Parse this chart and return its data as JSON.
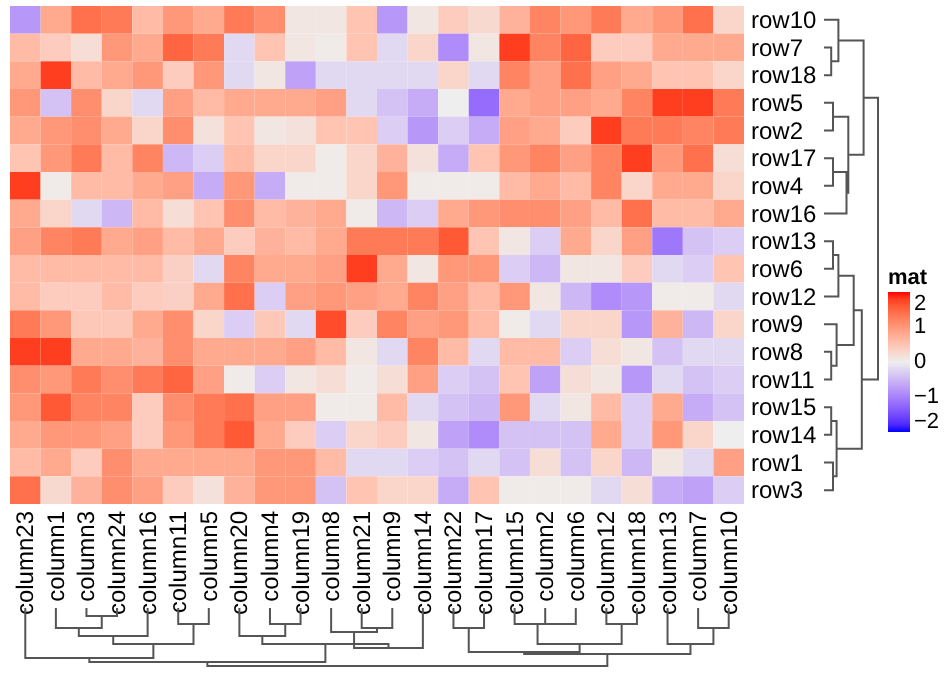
{
  "chart_data": {
    "type": "heatmap",
    "categories": [
      "column23",
      "column1",
      "column3",
      "column24",
      "column16",
      "column11",
      "column5",
      "column20",
      "column4",
      "column19",
      "column8",
      "column21",
      "column9",
      "column14",
      "column22",
      "column17",
      "column15",
      "column2",
      "column6",
      "column12",
      "column18",
      "column13",
      "column7",
      "column10"
    ],
    "y_categories": [
      "row10",
      "row7",
      "row18",
      "row5",
      "row2",
      "row17",
      "row4",
      "row16",
      "row13",
      "row6",
      "row12",
      "row9",
      "row8",
      "row11",
      "row15",
      "row14",
      "row1",
      "row3"
    ],
    "cells": [
      [
        -0.8,
        0.8,
        1.4,
        1.3,
        0.6,
        1.0,
        0.8,
        1.3,
        1.1,
        0.1,
        0.1,
        0.5,
        -0.8,
        0.1,
        0.4,
        0.25,
        0.7,
        1.2,
        1.0,
        1.3,
        0.8,
        1.0,
        1.4,
        0.3
      ],
      [
        0.6,
        0.4,
        0.2,
        1.0,
        0.8,
        1.5,
        1.3,
        -0.2,
        0.5,
        0.1,
        0.05,
        0.5,
        -0.2,
        0.3,
        -0.9,
        0.1,
        1.8,
        1.2,
        1.5,
        0.4,
        0.4,
        0.8,
        0.8,
        0.8
      ],
      [
        0.8,
        1.8,
        0.6,
        0.8,
        1.0,
        0.4,
        1.0,
        -0.2,
        0.1,
        -0.7,
        -0.2,
        -0.2,
        -0.2,
        -0.2,
        0.3,
        -0.2,
        1.2,
        0.9,
        1.4,
        0.9,
        0.8,
        0.5,
        0.5,
        0.3
      ],
      [
        1.0,
        -0.4,
        1.1,
        0.3,
        -0.2,
        0.9,
        0.6,
        0.8,
        0.8,
        0.8,
        0.9,
        -0.2,
        -0.4,
        -0.6,
        0.0,
        -1.2,
        0.8,
        0.9,
        0.9,
        0.8,
        1.2,
        1.8,
        1.8,
        1.3
      ],
      [
        0.8,
        1.0,
        1.1,
        0.8,
        0.3,
        1.1,
        0.15,
        0.5,
        0.1,
        0.15,
        0.5,
        0.5,
        -0.3,
        -0.8,
        -0.3,
        -0.6,
        0.9,
        0.8,
        0.4,
        1.8,
        1.3,
        1.3,
        1.2,
        1.3
      ],
      [
        0.5,
        1.0,
        1.3,
        0.6,
        1.2,
        -0.5,
        -0.3,
        0.6,
        0.3,
        0.3,
        0.05,
        0.3,
        0.7,
        0.15,
        -0.6,
        0.5,
        1.0,
        1.2,
        0.9,
        1.2,
        1.8,
        1.0,
        1.4,
        0.2
      ],
      [
        1.8,
        0.05,
        0.6,
        0.6,
        0.8,
        0.9,
        -0.6,
        1.0,
        -0.6,
        0.05,
        0.05,
        0.3,
        1.0,
        0.05,
        0.05,
        0.05,
        0.6,
        0.8,
        0.6,
        1.2,
        0.3,
        0.8,
        0.8,
        0.3
      ],
      [
        0.8,
        0.3,
        -0.2,
        -0.5,
        0.6,
        0.2,
        0.5,
        1.1,
        0.6,
        0.7,
        0.8,
        0.05,
        -0.5,
        -0.3,
        0.8,
        1.0,
        1.1,
        1.1,
        0.9,
        0.6,
        1.4,
        0.6,
        0.6,
        0.8
      ],
      [
        0.9,
        1.2,
        1.3,
        0.8,
        0.9,
        0.6,
        0.8,
        0.4,
        0.7,
        0.6,
        0.8,
        1.3,
        1.3,
        1.3,
        1.6,
        0.5,
        0.1,
        -0.3,
        0.8,
        0.3,
        0.9,
        -1.1,
        -0.4,
        -0.3
      ],
      [
        0.6,
        0.6,
        0.6,
        0.6,
        0.6,
        0.35,
        -0.2,
        1.2,
        0.8,
        0.8,
        0.9,
        1.8,
        0.8,
        0.1,
        1.0,
        1.0,
        -0.3,
        -0.5,
        0.1,
        0.1,
        0.4,
        -0.2,
        -0.3,
        0.5
      ],
      [
        0.6,
        0.4,
        0.4,
        0.6,
        0.4,
        0.35,
        0.8,
        1.4,
        -0.3,
        0.9,
        1.0,
        0.9,
        0.8,
        1.2,
        0.9,
        0.6,
        1.0,
        0.1,
        -0.5,
        -0.9,
        -0.8,
        0.05,
        0.05,
        -0.2
      ],
      [
        1.3,
        1.0,
        0.45,
        0.45,
        0.8,
        1.1,
        0.3,
        -0.3,
        0.45,
        -0.2,
        1.7,
        0.4,
        1.2,
        0.9,
        1.0,
        0.6,
        0.05,
        -0.2,
        0.3,
        0.3,
        -0.8,
        0.7,
        -0.5,
        0.3
      ],
      [
        1.8,
        1.8,
        0.8,
        0.8,
        0.7,
        1.1,
        0.8,
        0.8,
        0.8,
        0.9,
        0.6,
        0.1,
        -0.2,
        1.2,
        0.6,
        -0.2,
        0.6,
        0.6,
        -0.3,
        0.2,
        0.1,
        -0.4,
        -0.2,
        -0.2
      ],
      [
        1.1,
        1.0,
        1.3,
        1.1,
        1.3,
        1.5,
        0.9,
        0.05,
        -0.3,
        0.1,
        0.2,
        0.05,
        0.2,
        0.9,
        -0.3,
        -0.4,
        0.5,
        -0.7,
        0.2,
        0.1,
        -0.8,
        -0.2,
        -0.4,
        -0.3
      ],
      [
        1.0,
        1.6,
        1.2,
        1.2,
        0.4,
        1.1,
        1.3,
        1.4,
        0.9,
        0.9,
        0.05,
        0.05,
        0.6,
        -0.2,
        -0.4,
        -0.5,
        1.0,
        -0.2,
        0.1,
        0.6,
        -0.3,
        0.8,
        -0.6,
        -0.4
      ],
      [
        0.8,
        1.0,
        1.0,
        0.9,
        0.4,
        1.0,
        1.3,
        1.6,
        0.8,
        0.4,
        -0.3,
        0.3,
        0.4,
        0.1,
        -0.7,
        -0.9,
        -0.4,
        -0.4,
        -0.4,
        0.8,
        -0.3,
        1.0,
        0.3,
        0.0
      ],
      [
        0.6,
        0.8,
        0.4,
        1.1,
        0.8,
        0.8,
        0.8,
        0.8,
        1.0,
        1.0,
        0.6,
        -0.2,
        -0.2,
        -0.3,
        -0.4,
        -0.2,
        -0.4,
        0.2,
        -0.4,
        0.3,
        -0.5,
        0.1,
        -0.2,
        0.9
      ],
      [
        1.4,
        0.25,
        0.7,
        1.1,
        0.9,
        0.4,
        0.15,
        0.7,
        1.0,
        1.0,
        -0.4,
        0.5,
        0.3,
        0.3,
        -0.6,
        0.5,
        0.05,
        0.05,
        0.05,
        -0.2,
        0.2,
        -0.6,
        -0.7,
        -0.3
      ]
    ],
    "clabel": "mat",
    "clim": [
      -2,
      2
    ],
    "cticks": [
      -2,
      -1,
      0,
      1,
      2
    ]
  }
}
